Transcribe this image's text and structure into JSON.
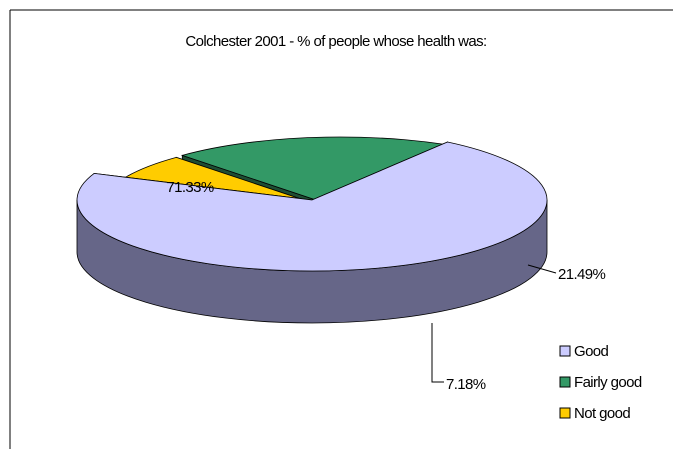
{
  "chart_data": {
    "type": "pie",
    "title": "Colchester 2001 - % of people whose health was:",
    "categories": [
      "Good",
      "Fairly good",
      "Not good"
    ],
    "values": [
      71.33,
      21.49,
      7.18
    ],
    "value_labels": [
      "71.33%",
      "21.49%",
      "7.18%"
    ],
    "style": "3d-exploded",
    "legend": {
      "position": "bottom-right",
      "entries": [
        "Good",
        "Fairly good",
        "Not good"
      ]
    },
    "colors": {
      "Good": {
        "top": "#ccccff",
        "side": "#666688"
      },
      "Fairly good": {
        "top": "#339966",
        "side": "#1e4d33"
      },
      "Not good": {
        "top": "#ffcc00",
        "side": "#8c6a00"
      }
    }
  }
}
